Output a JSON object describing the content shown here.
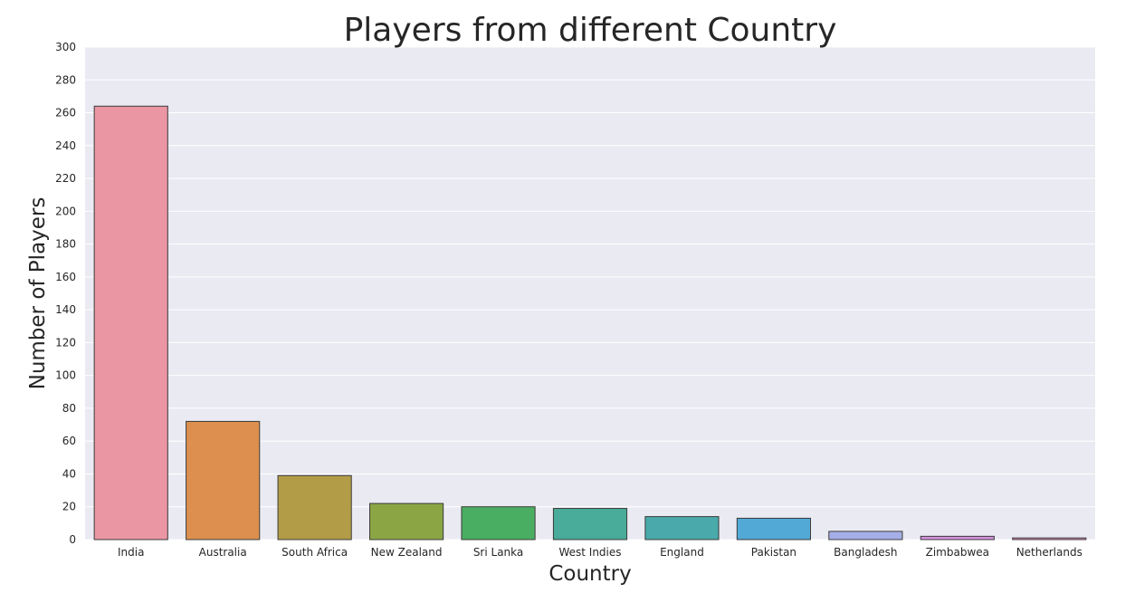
{
  "chart_data": {
    "type": "bar",
    "title": "Players from different Country",
    "xlabel": "Country",
    "ylabel": "Number of Players",
    "categories": [
      "India",
      "Australia",
      "South Africa",
      "New Zealand",
      "Sri Lanka",
      "West Indies",
      "England",
      "Pakistan",
      "Bangladesh",
      "Zimbabwea",
      "Netherlands"
    ],
    "values": [
      264,
      72,
      39,
      22,
      20,
      19,
      14,
      13,
      5,
      2,
      1
    ],
    "colors": [
      "#ea96a3",
      "#dc8f4e",
      "#b39c48",
      "#8ba545",
      "#4aae62",
      "#49ab99",
      "#4aa9aa",
      "#52a9d6",
      "#a6aee8",
      "#d690dc",
      "#e88ebd"
    ],
    "ylim": [
      0,
      300
    ],
    "yticks": [
      0,
      20,
      40,
      60,
      80,
      100,
      120,
      140,
      160,
      180,
      200,
      220,
      240,
      260,
      280,
      300
    ],
    "grid": true,
    "background": "#eaeaf2"
  }
}
